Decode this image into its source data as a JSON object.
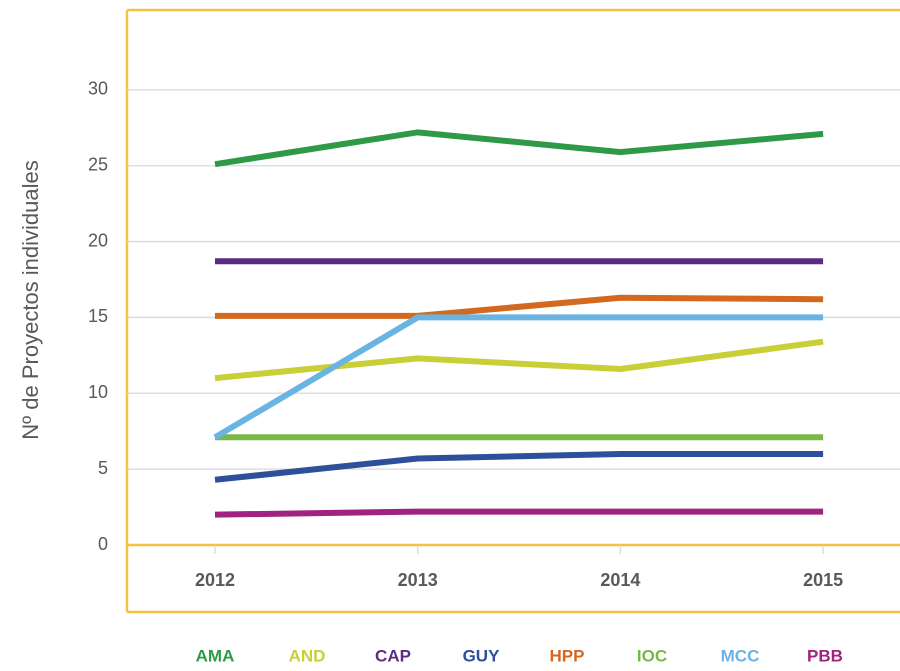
{
  "chart_data": {
    "type": "line",
    "y_label": "Nº de Proyectos individuales",
    "categories": [
      "2012",
      "2013",
      "2014",
      "2015"
    ],
    "series": [
      {
        "name": "AMA",
        "color": "#2e9a47",
        "values": [
          25.1,
          27.2,
          25.9,
          27.1
        ]
      },
      {
        "name": "AND",
        "color": "#c8cf37",
        "values": [
          11.0,
          12.3,
          11.6,
          13.4
        ]
      },
      {
        "name": "CAP",
        "color": "#5c2c83",
        "values": [
          18.7,
          18.7,
          18.7,
          18.7
        ]
      },
      {
        "name": "GUY",
        "color": "#2e4f9a",
        "values": [
          4.3,
          5.7,
          6.0,
          6.0
        ]
      },
      {
        "name": "HPP",
        "color": "#d2691e",
        "values": [
          15.1,
          15.1,
          16.3,
          16.2
        ]
      },
      {
        "name": "IOC",
        "color": "#7ab648",
        "values": [
          7.1,
          7.1,
          7.1,
          7.1
        ]
      },
      {
        "name": "MCC",
        "color": "#6ab4e2",
        "values": [
          7.1,
          15.0,
          15.0,
          15.0
        ]
      },
      {
        "name": "PBB",
        "color": "#a0237f",
        "values": [
          2.0,
          2.2,
          2.2,
          2.2
        ]
      }
    ],
    "ylim": [
      0,
      35
    ],
    "yticks": [
      0,
      5,
      10,
      15,
      20,
      25,
      30
    ],
    "grid": true,
    "legend": "bottom"
  }
}
